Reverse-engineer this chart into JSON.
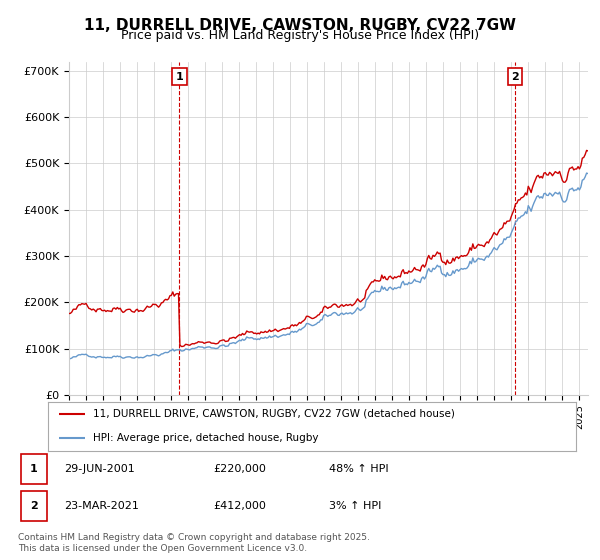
{
  "title": "11, DURRELL DRIVE, CAWSTON, RUGBY, CV22 7GW",
  "subtitle": "Price paid vs. HM Land Registry's House Price Index (HPI)",
  "background_color": "#ffffff",
  "grid_color": "#cccccc",
  "title_fontsize": 11,
  "subtitle_fontsize": 9,
  "annotation1": {
    "label": "1",
    "date_x": 2001.49
  },
  "annotation2": {
    "label": "2",
    "date_x": 2021.22
  },
  "legend_line1": "11, DURRELL DRIVE, CAWSTON, RUGBY, CV22 7GW (detached house)",
  "legend_line2": "HPI: Average price, detached house, Rugby",
  "footer": "Contains HM Land Registry data © Crown copyright and database right 2025.\nThis data is licensed under the Open Government Licence v3.0.",
  "table_row1": [
    "1",
    "29-JUN-2001",
    "£220,000",
    "48% ↑ HPI"
  ],
  "table_row2": [
    "2",
    "23-MAR-2021",
    "£412,000",
    "3% ↑ HPI"
  ],
  "ylim": [
    0,
    720000
  ],
  "yticks": [
    0,
    100000,
    200000,
    300000,
    400000,
    500000,
    600000,
    700000
  ],
  "ytick_labels": [
    "£0",
    "£100K",
    "£200K",
    "£300K",
    "£400K",
    "£500K",
    "£600K",
    "£700K"
  ],
  "red_color": "#cc0000",
  "blue_color": "#6699cc",
  "vline_color": "#cc0000",
  "xlim": [
    1995.0,
    2025.5
  ]
}
